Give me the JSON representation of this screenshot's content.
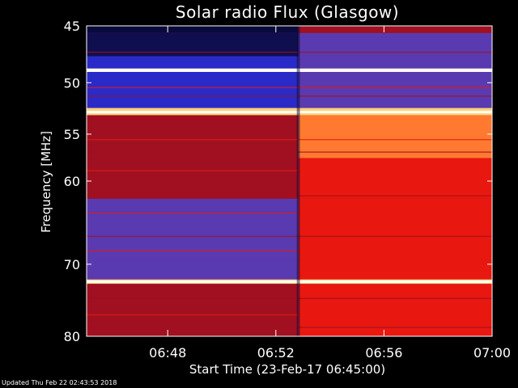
{
  "footer": {
    "updated": "Updated Thu Feb 22 02:43:53 2018"
  },
  "chart_data": {
    "type": "heatmap",
    "title": "Solar radio Flux (Glasgow)",
    "xlabel": "Start Time (23-Feb-17 06:45:00)",
    "ylabel": "Frequency [MHz]",
    "xlim": [
      "06:45",
      "07:00"
    ],
    "ylim": [
      45,
      80
    ],
    "y_scale": "log",
    "x_ticks": [
      "06:48",
      "06:52",
      "06:56",
      "07:00"
    ],
    "y_ticks": [
      45,
      50,
      55,
      60,
      70,
      80
    ],
    "transition_time": "06:52:50",
    "colormap": [
      "#0a0a3a",
      "#2a2ac8",
      "#5a3ab0",
      "#a01020",
      "#e81810",
      "#ff7a30",
      "#ffd27a",
      "#ffffff"
    ],
    "bright_bands_mhz": [
      48.9,
      52.8,
      72.3
    ],
    "colors": {
      "background": "#000000",
      "text": "#ffffff"
    }
  }
}
